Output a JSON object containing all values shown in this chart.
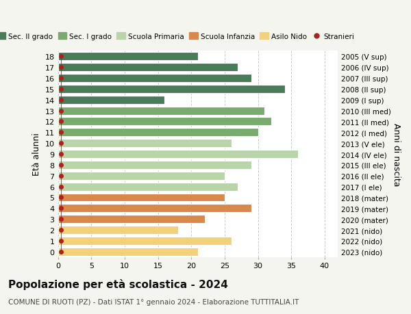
{
  "ages": [
    0,
    1,
    2,
    3,
    4,
    5,
    6,
    7,
    8,
    9,
    10,
    11,
    12,
    13,
    14,
    15,
    16,
    17,
    18
  ],
  "values": [
    21,
    26,
    18,
    22,
    29,
    25,
    27,
    25,
    29,
    36,
    26,
    30,
    32,
    31,
    16,
    34,
    29,
    27,
    21
  ],
  "stranieri": [
    1,
    1,
    1,
    1,
    1,
    1,
    1,
    0,
    0,
    0,
    0,
    1,
    0,
    0,
    0,
    0,
    0,
    0,
    0
  ],
  "right_labels": [
    "2023 (nido)",
    "2022 (nido)",
    "2021 (nido)",
    "2020 (mater)",
    "2019 (mater)",
    "2018 (mater)",
    "2017 (I ele)",
    "2016 (II ele)",
    "2015 (III ele)",
    "2014 (IV ele)",
    "2013 (V ele)",
    "2012 (I med)",
    "2011 (II med)",
    "2010 (III med)",
    "2009 (I sup)",
    "2008 (II sup)",
    "2007 (III sup)",
    "2006 (IV sup)",
    "2005 (V sup)"
  ],
  "bar_colors": [
    "#f5d07a",
    "#f5d07a",
    "#f5d07a",
    "#d9874a",
    "#d9874a",
    "#d9874a",
    "#b8d4a8",
    "#b8d4a8",
    "#b8d4a8",
    "#b8d4a8",
    "#b8d4a8",
    "#7aab6e",
    "#7aab6e",
    "#7aab6e",
    "#4a7c59",
    "#4a7c59",
    "#4a7c59",
    "#4a7c59",
    "#4a7c59"
  ],
  "legend_labels": [
    "Sec. II grado",
    "Sec. I grado",
    "Scuola Primaria",
    "Scuola Infanzia",
    "Asilo Nido",
    "Stranieri"
  ],
  "legend_colors": [
    "#4a7c59",
    "#7aab6e",
    "#b8d4a8",
    "#d9874a",
    "#f5d07a",
    "#aa2222"
  ],
  "title": "Popolazione per età scolastica - 2024",
  "subtitle": "COMUNE DI RUOTI (PZ) - Dati ISTAT 1° gennaio 2024 - Elaborazione TUTTITALIA.IT",
  "ylabel_left": "Età alunni",
  "ylabel_right": "Anni di nascita",
  "xlim": [
    0,
    42
  ],
  "ylim": [
    -0.5,
    18.5
  ],
  "xticks": [
    0,
    5,
    10,
    15,
    20,
    25,
    30,
    35,
    40
  ],
  "bg_color": "#f5f5f0",
  "plot_bg_color": "#ffffff",
  "grid_color": "#cccccc",
  "stranieri_color": "#aa2222",
  "stranieri_x": 0.5,
  "bar_height": 0.75,
  "bar_edgecolor": "white",
  "bar_linewidth": 0.8
}
